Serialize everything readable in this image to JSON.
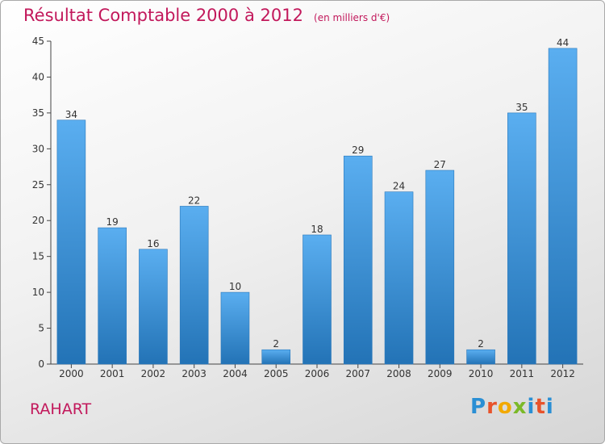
{
  "title": "Résultat Comptable 2000 à 2012",
  "subtitle": "(en milliers d'€)",
  "commune": "RAHART",
  "logo_text": "Proxiti",
  "colors": {
    "bar": "#3a8fd6",
    "bar_light": "#5aaef0",
    "bar_dark": "#2373b6",
    "title": "#c2185b"
  },
  "chart_data": {
    "type": "bar",
    "title": "Résultat Comptable 2000 à 2012",
    "subtitle": "(en milliers d'€)",
    "categories": [
      "2000",
      "2001",
      "2002",
      "2003",
      "2004",
      "2005",
      "2006",
      "2007",
      "2008",
      "2009",
      "2010",
      "2011",
      "2012"
    ],
    "values": [
      34,
      19,
      16,
      22,
      10,
      2,
      18,
      29,
      24,
      27,
      2,
      35,
      44
    ],
    "ylim": [
      0,
      45
    ],
    "yticks": [
      0,
      5,
      10,
      15,
      20,
      25,
      30,
      35,
      40,
      45
    ],
    "xlabel": "",
    "ylabel": "",
    "grid": false
  }
}
